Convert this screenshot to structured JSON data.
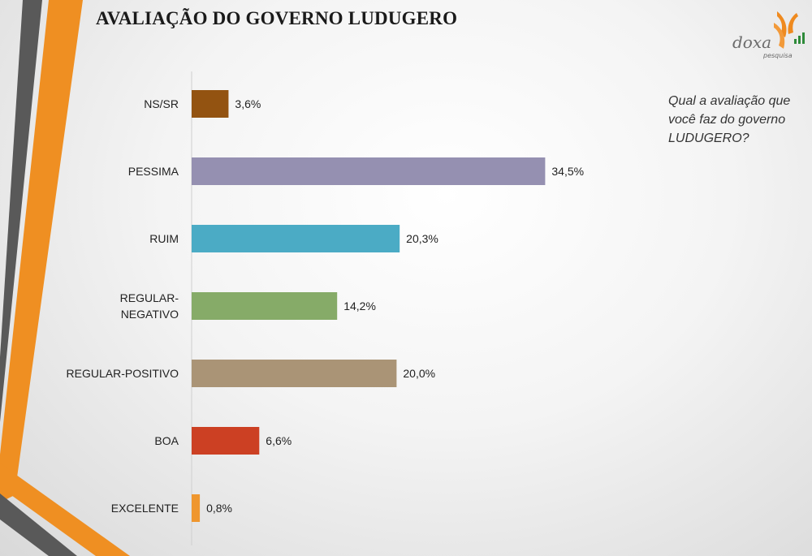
{
  "slide": {
    "title": "AVALIAÇÃO DO GOVERNO LUDUGERO",
    "question": "Qual a avaliação que você faz do governo LUDUGERO?"
  },
  "logo": {
    "name": "doxa",
    "sub": "pesquisa",
    "accent": "#ef8a1f"
  },
  "chart_data": {
    "type": "bar",
    "orientation": "horizontal",
    "categories": [
      "NS/SR",
      "PESSIMA",
      "RUIM",
      "REGULAR-NEGATIVO",
      "REGULAR-POSITIVO",
      "BOA",
      "EXCELENTE"
    ],
    "values": [
      3.6,
      34.5,
      20.3,
      14.2,
      20.0,
      6.6,
      0.8
    ],
    "value_labels": [
      "3,6%",
      "34,5%",
      "20,3%",
      "14,2%",
      "20,0%",
      "6,6%",
      "0,8%"
    ],
    "colors": [
      "#935311",
      "#9590b1",
      "#4babc5",
      "#86ab68",
      "#aa9476",
      "#cc4023",
      "#ef962e"
    ],
    "xlim": [
      0,
      35
    ],
    "grid": false,
    "legend": "none"
  }
}
